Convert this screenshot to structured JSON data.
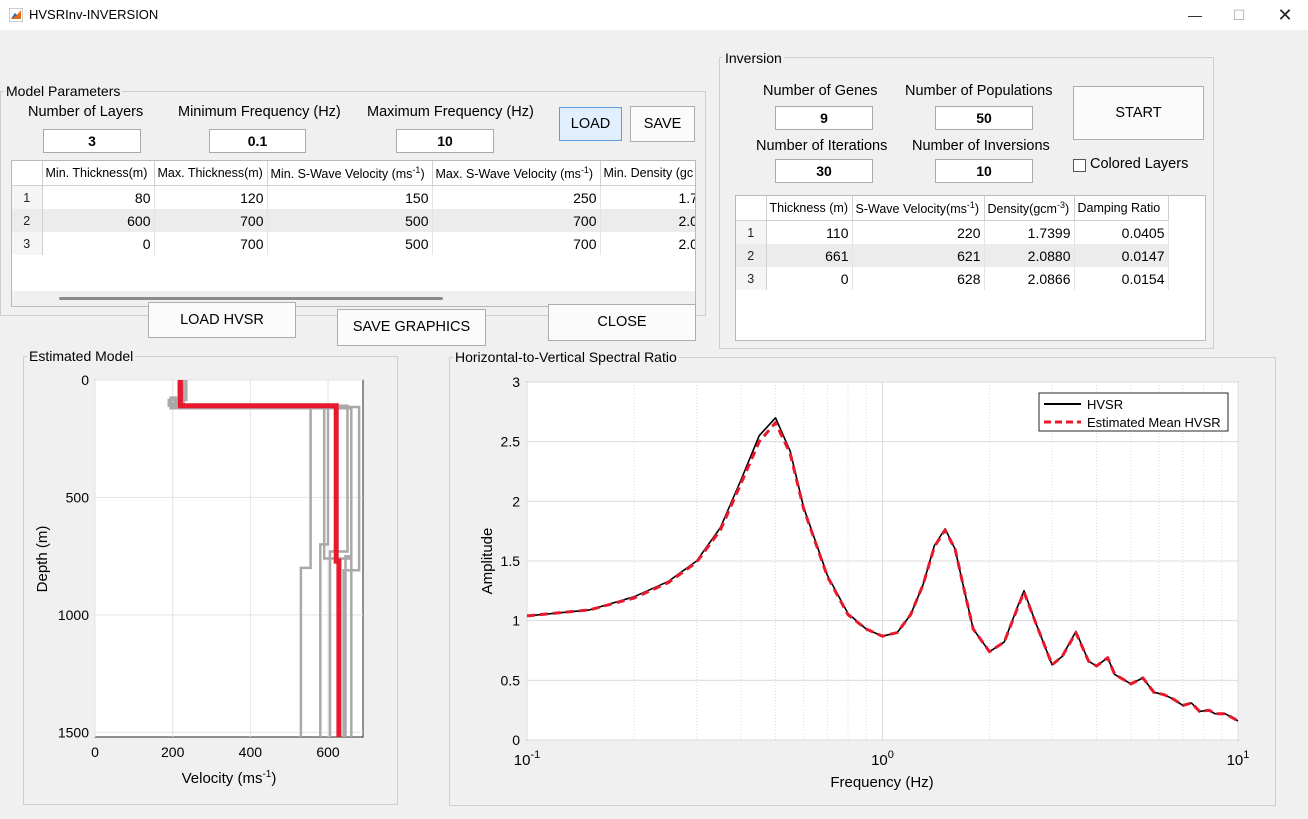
{
  "window": {
    "title": "HVSRInv-INVERSION",
    "minimize_icon": "minimize-icon",
    "maximize_icon": "maximize-icon",
    "close_icon": "close-icon"
  },
  "model_params": {
    "title": "Model Parameters",
    "layers_label": "Number of Layers",
    "layers_value": "3",
    "min_freq_label": "Minimum Frequency (Hz)",
    "min_freq_value": "0.1",
    "max_freq_label": "Maximum Frequency (Hz)",
    "max_freq_value": "10",
    "load_label": "LOAD",
    "save_label": "SAVE",
    "table": {
      "headers": [
        "Min. Thickness(m)",
        "Max. Thickness(m)",
        "Min. S-Wave Velocity (ms",
        "Max. S-Wave Velocity (ms",
        "Min. Density (gc"
      ],
      "header_sup": "-1",
      "rows": [
        [
          "1",
          "80",
          "120",
          "150",
          "250",
          "1.7"
        ],
        [
          "2",
          "600",
          "700",
          "500",
          "700",
          "2.0"
        ],
        [
          "3",
          "0",
          "700",
          "500",
          "700",
          "2.0"
        ]
      ]
    }
  },
  "buttons": {
    "load_hvsr": "LOAD HVSR",
    "save_graphics": "SAVE GRAPHICS",
    "close": "CLOSE",
    "start": "START"
  },
  "inversion": {
    "title": "Inversion",
    "genes_label": "Number of Genes",
    "genes_value": "9",
    "pop_label": "Number of Populations",
    "pop_value": "50",
    "iter_label": "Number of Iterations",
    "iter_value": "30",
    "inv_label": "Number of Inversions",
    "inv_value": "10",
    "colored_layers_label": "Colored Layers",
    "colored_layers_checked": false,
    "table": {
      "headers": [
        "Thickness (m)",
        "S-Wave Velocity(ms",
        "Density(gcm",
        "Damping Ratio"
      ],
      "sup1": "-1",
      "sup2": "-3",
      "rows": [
        [
          "1",
          "110",
          "220",
          "1.7399",
          "0.0405"
        ],
        [
          "2",
          "661",
          "621",
          "2.0880",
          "0.0147"
        ],
        [
          "3",
          "0",
          "628",
          "2.0866",
          "0.0154"
        ]
      ]
    }
  },
  "estimated_model": {
    "title": "Estimated Model",
    "xlabel": "Velocity (ms",
    "xlabel_sup": "-1",
    "xlabel_end": ")",
    "ylabel": "Depth (m)",
    "xticks": [
      "0",
      "200",
      "400",
      "600"
    ],
    "yticks": [
      "0",
      "500",
      "1000",
      "1500"
    ]
  },
  "hvsr": {
    "title": "Horizontal-to-Vertical Spectral Ratio",
    "xlabel": "Frequency (Hz)",
    "ylabel": "Amplitude",
    "yticks": [
      "0",
      "0.5",
      "1",
      "1.5",
      "2",
      "2.5",
      "3"
    ],
    "xticks": [
      {
        "base": "10",
        "exp": "-1"
      },
      {
        "base": "10",
        "exp": "0"
      },
      {
        "base": "10",
        "exp": "1"
      }
    ],
    "legend": [
      "HVSR",
      "Estimated Mean HVSR"
    ]
  },
  "chart_data": [
    {
      "type": "line",
      "title": "",
      "xlabel": "Velocity (ms-1)",
      "ylabel": "Depth (m)",
      "xlim": [
        0,
        690
      ],
      "ylim": [
        1520,
        0
      ],
      "grid": true,
      "series": [
        {
          "color": "#a9a9a9",
          "x": [
            220,
            220,
            195,
            195,
            555,
            555,
            530,
            530
          ],
          "y": [
            0,
            75,
            75,
            120,
            120,
            800,
            800,
            1520
          ]
        },
        {
          "color": "#a9a9a9",
          "x": [
            235,
            235,
            190,
            190,
            650,
            650,
            605,
            605
          ],
          "y": [
            0,
            85,
            85,
            110,
            110,
            730,
            730,
            1520
          ]
        },
        {
          "color": "#a9a9a9",
          "x": [
            228,
            228,
            205,
            205,
            680,
            680,
            640,
            640
          ],
          "y": [
            0,
            95,
            95,
            115,
            115,
            810,
            810,
            1520
          ]
        },
        {
          "color": "#a9a9a9",
          "x": [
            215,
            215,
            200,
            200,
            600,
            600,
            580,
            580
          ],
          "y": [
            0,
            100,
            100,
            118,
            118,
            700,
            700,
            1520
          ]
        },
        {
          "color": "#a9a9a9",
          "x": [
            225,
            225,
            210,
            210,
            660,
            660,
            645,
            645
          ],
          "y": [
            0,
            110,
            110,
            120,
            120,
            750,
            750,
            1520
          ]
        },
        {
          "color": "#a9a9a9",
          "x": [
            218,
            218,
            590,
            590,
            660,
            660
          ],
          "y": [
            0,
            112,
            112,
            760,
            760,
            1520
          ]
        },
        {
          "color": "#e8182d",
          "x": [
            220,
            220,
            621,
            621,
            628,
            628
          ],
          "y": [
            0,
            110,
            110,
            771,
            771,
            1520
          ]
        }
      ]
    },
    {
      "type": "line",
      "title": "",
      "xlabel": "Frequency (Hz)",
      "ylabel": "Amplitude",
      "xscale": "log",
      "xlim": [
        0.1,
        10
      ],
      "ylim": [
        0,
        3
      ],
      "grid": true,
      "legend_placement": "top-right",
      "series": [
        {
          "name": "HVSR",
          "color": "#000000",
          "style": "solid",
          "x": [
            0.1,
            0.15,
            0.2,
            0.25,
            0.3,
            0.35,
            0.4,
            0.45,
            0.5,
            0.55,
            0.6,
            0.7,
            0.8,
            0.9,
            1.0,
            1.1,
            1.2,
            1.3,
            1.4,
            1.5,
            1.6,
            1.7,
            1.8,
            2.0,
            2.2,
            2.4,
            2.5,
            2.7,
            3.0,
            3.2,
            3.5,
            3.8,
            4.0,
            4.3,
            4.5,
            5.0,
            5.4,
            5.8,
            6.2,
            6.6,
            7.0,
            7.4,
            7.8,
            8.3,
            8.6,
            9.2,
            10.0
          ],
          "y": [
            1.04,
            1.09,
            1.2,
            1.33,
            1.5,
            1.78,
            2.18,
            2.55,
            2.7,
            2.42,
            1.95,
            1.38,
            1.06,
            0.93,
            0.87,
            0.9,
            1.05,
            1.3,
            1.63,
            1.77,
            1.6,
            1.25,
            0.93,
            0.74,
            0.82,
            1.12,
            1.25,
            0.98,
            0.63,
            0.7,
            0.91,
            0.66,
            0.62,
            0.69,
            0.55,
            0.47,
            0.52,
            0.4,
            0.38,
            0.34,
            0.29,
            0.31,
            0.24,
            0.25,
            0.22,
            0.22,
            0.16
          ]
        },
        {
          "name": "Estimated Mean HVSR",
          "color": "#e8182d",
          "style": "dashed",
          "x": [
            0.1,
            0.15,
            0.2,
            0.25,
            0.3,
            0.35,
            0.4,
            0.45,
            0.5,
            0.55,
            0.6,
            0.7,
            0.8,
            0.9,
            1.0,
            1.1,
            1.2,
            1.3,
            1.4,
            1.5,
            1.6,
            1.7,
            1.8,
            2.0,
            2.2,
            2.4,
            2.5,
            2.7,
            3.0,
            3.2,
            3.5,
            3.8,
            4.0,
            4.3,
            4.5,
            5.0,
            5.4,
            5.8,
            6.2,
            6.6,
            7.0,
            7.4,
            7.8,
            8.3,
            8.6,
            9.2,
            10.0
          ],
          "y": [
            1.04,
            1.09,
            1.19,
            1.32,
            1.49,
            1.76,
            2.15,
            2.5,
            2.66,
            2.4,
            1.94,
            1.37,
            1.05,
            0.93,
            0.87,
            0.9,
            1.05,
            1.3,
            1.62,
            1.76,
            1.6,
            1.25,
            0.93,
            0.74,
            0.82,
            1.11,
            1.24,
            0.98,
            0.63,
            0.7,
            0.9,
            0.66,
            0.62,
            0.69,
            0.55,
            0.47,
            0.52,
            0.4,
            0.38,
            0.34,
            0.29,
            0.31,
            0.24,
            0.25,
            0.22,
            0.22,
            0.16
          ]
        }
      ]
    }
  ]
}
